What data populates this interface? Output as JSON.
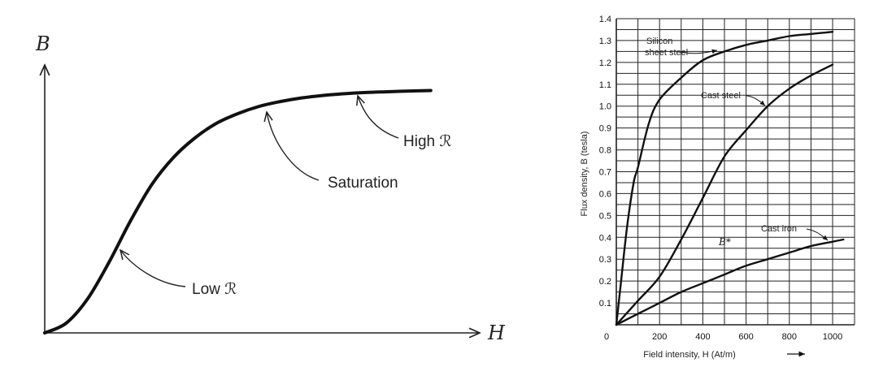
{
  "chart_data": [
    {
      "type": "line",
      "xlabel": "H",
      "ylabel": "B",
      "annotations": [
        "High ℛ",
        "Saturation",
        "Low ℛ"
      ],
      "curve": {
        "x": [
          0,
          0.05,
          0.1,
          0.15,
          0.2,
          0.25,
          0.3,
          0.35,
          0.4,
          0.45,
          0.5,
          0.55,
          0.6,
          0.65,
          0.7,
          0.75,
          0.8,
          0.85,
          0.9
        ],
        "y": [
          0,
          0.04,
          0.14,
          0.29,
          0.46,
          0.61,
          0.72,
          0.8,
          0.86,
          0.9,
          0.93,
          0.95,
          0.965,
          0.975,
          0.982,
          0.987,
          0.99,
          0.993,
          0.995
        ]
      }
    },
    {
      "type": "line",
      "xlabel": "Field intensity, H (At/m)",
      "ylabel": "Flux density, B (tesla)",
      "xlim": [
        0,
        1000
      ],
      "ylim": [
        0,
        1.4
      ],
      "x_ticks": [
        "0",
        "200",
        "400",
        "600",
        "800",
        "1000"
      ],
      "y_ticks": [
        "0.1",
        "0.2",
        "0.3",
        "0.4",
        "0.5",
        "0.6",
        "0.7",
        "0.8",
        "0.9",
        "1.0",
        "1.1",
        "1.2",
        "1.3",
        "1.4"
      ],
      "grid": true,
      "annotations": [
        "Silicon",
        "sheet steel",
        "Cast steel",
        "Cast iron",
        "B*"
      ],
      "series": [
        {
          "name": "Silicon sheet steel",
          "x": [
            0,
            20,
            50,
            80,
            100,
            150,
            200,
            300,
            400,
            500,
            600,
            700,
            800,
            900,
            1000
          ],
          "y": [
            0,
            0.18,
            0.45,
            0.65,
            0.72,
            0.92,
            1.03,
            1.13,
            1.21,
            1.25,
            1.28,
            1.3,
            1.32,
            1.33,
            1.34
          ]
        },
        {
          "name": "Cast steel",
          "x": [
            0,
            100,
            200,
            300,
            400,
            500,
            600,
            700,
            800,
            900,
            1000
          ],
          "y": [
            0,
            0.11,
            0.22,
            0.39,
            0.58,
            0.77,
            0.89,
            1.0,
            1.08,
            1.14,
            1.19
          ]
        },
        {
          "name": "Cast iron",
          "x": [
            0,
            100,
            200,
            300,
            400,
            500,
            600,
            700,
            800,
            900,
            1000,
            1050
          ],
          "y": [
            0,
            0.05,
            0.1,
            0.15,
            0.19,
            0.23,
            0.27,
            0.3,
            0.33,
            0.36,
            0.38,
            0.39
          ]
        }
      ]
    }
  ]
}
